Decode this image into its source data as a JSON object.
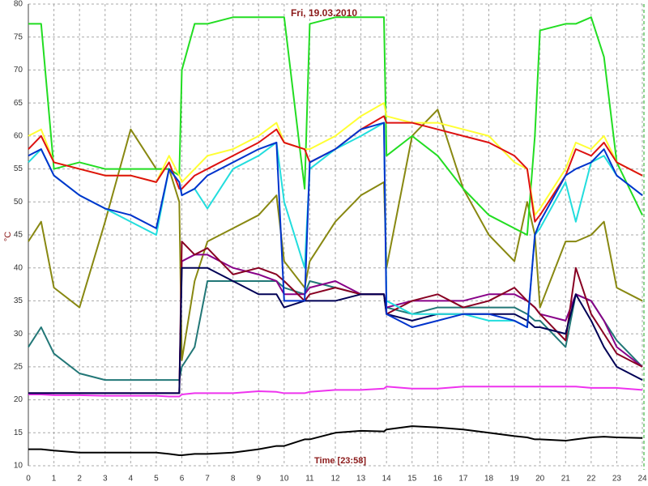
{
  "chart_data": {
    "type": "line",
    "title": "Fri, 19.03.2010",
    "xlabel": "Time [23:58]",
    "ylabel": "°C",
    "x": [
      0,
      0.5,
      1,
      2,
      3,
      4,
      5,
      5.5,
      5.9,
      6,
      6.5,
      7,
      8,
      9,
      9.7,
      10,
      10.8,
      11,
      12,
      13,
      13.9,
      14,
      15,
      16,
      17,
      18,
      19,
      19.5,
      19.8,
      20,
      21,
      21.4,
      22,
      22.5,
      23,
      24
    ],
    "xlim": [
      0,
      24
    ],
    "xticks": [
      0,
      1,
      2,
      3,
      4,
      5,
      6,
      7,
      8,
      9,
      10,
      11,
      12,
      13,
      14,
      15,
      16,
      17,
      18,
      19,
      20,
      21,
      22,
      23,
      24
    ],
    "ylim": [
      10,
      80
    ],
    "yticks": [
      10,
      15,
      20,
      25,
      30,
      35,
      40,
      45,
      50,
      55,
      60,
      65,
      70,
      75,
      80
    ],
    "grid": true,
    "series": [
      {
        "color": "#000000",
        "values": [
          12.5,
          12.5,
          12.3,
          12,
          12,
          12,
          12,
          11.8,
          11.6,
          11.6,
          11.8,
          11.8,
          12,
          12.5,
          13,
          13,
          14,
          14,
          15,
          15.3,
          15.2,
          15.5,
          16,
          15.8,
          15.5,
          15,
          14.5,
          14.3,
          14,
          14,
          13.8,
          14,
          14.3,
          14.4,
          14.3,
          14.2
        ]
      },
      {
        "color": "#ee33ee",
        "values": [
          20.8,
          20.8,
          20.7,
          20.7,
          20.6,
          20.6,
          20.6,
          20.5,
          20.5,
          20.8,
          21,
          21,
          21,
          21.3,
          21.2,
          21,
          21,
          21.2,
          21.5,
          21.5,
          21.7,
          22,
          21.7,
          21.7,
          22,
          22,
          22,
          22,
          22,
          22,
          22,
          22,
          21.8,
          21.8,
          21.8,
          21.5
        ]
      },
      {
        "color": "#888811",
        "values": [
          44,
          47,
          37,
          34,
          47,
          61,
          55,
          55,
          50,
          26,
          38,
          44,
          46,
          48,
          51,
          41,
          37,
          41,
          47,
          51,
          53,
          40,
          60,
          64,
          52,
          45,
          41,
          50,
          45,
          34,
          44,
          44,
          45,
          47,
          37,
          35
        ]
      },
      {
        "color": "#227777",
        "values": [
          28,
          31,
          27,
          24,
          23,
          23,
          23,
          23,
          23,
          25,
          28,
          38,
          38,
          38,
          38,
          37,
          36,
          38,
          37,
          36,
          36,
          34,
          33,
          34,
          34,
          34,
          34,
          33,
          32,
          32,
          28,
          36,
          35,
          32,
          29,
          25
        ]
      },
      {
        "color": "#880088",
        "values": [
          21,
          21,
          21,
          21,
          21,
          21,
          21,
          21,
          21,
          41,
          42,
          42,
          40,
          39,
          38,
          36,
          36,
          37,
          38,
          36,
          36,
          34,
          35,
          35,
          35,
          36,
          36,
          35,
          34,
          33,
          32,
          36,
          35,
          32,
          28,
          25
        ]
      },
      {
        "color": "#880022",
        "values": [
          21,
          21,
          21,
          21,
          21,
          21,
          21,
          21,
          21,
          44,
          42,
          43,
          39,
          40,
          39,
          38,
          35,
          36,
          37,
          36,
          36,
          33,
          35,
          36,
          34,
          35,
          37,
          35,
          34,
          33,
          29,
          40,
          33,
          30,
          27,
          25
        ]
      },
      {
        "color": "#000055",
        "values": [
          21,
          21,
          21,
          21,
          21,
          21,
          21,
          21,
          21,
          40,
          40,
          40,
          38,
          36,
          36,
          34,
          35,
          35,
          35,
          36,
          36,
          33,
          32,
          33,
          33,
          33,
          33,
          32,
          31,
          31,
          30,
          36,
          32,
          28,
          25,
          23
        ]
      },
      {
        "color": "#22dd22",
        "values": [
          77,
          77,
          55,
          56,
          55,
          55,
          55,
          55,
          54,
          70,
          77,
          77,
          78,
          78,
          78,
          78,
          52,
          77,
          78,
          78,
          78,
          57,
          60,
          57,
          52,
          48,
          46,
          45,
          60,
          76,
          77,
          77,
          78,
          72,
          56,
          48
        ]
      },
      {
        "color": "#ffff33",
        "values": [
          60,
          61,
          56,
          55,
          54,
          54,
          53,
          57,
          54,
          53,
          55,
          57,
          58,
          60,
          62,
          59,
          58,
          58,
          60,
          63,
          65,
          63,
          62,
          62,
          61,
          60,
          56,
          55,
          48,
          49,
          55,
          59,
          58,
          60,
          56,
          54
        ]
      },
      {
        "color": "#dd1111",
        "values": [
          58,
          60,
          56,
          55,
          54,
          54,
          53,
          56,
          52,
          52,
          54,
          55,
          57,
          59,
          61,
          59,
          58,
          56,
          58,
          61,
          63,
          62,
          62,
          61,
          60,
          59,
          57,
          55,
          47,
          48,
          54,
          58,
          57,
          59,
          56,
          54
        ]
      },
      {
        "color": "#22dddd",
        "values": [
          56,
          58,
          54,
          51,
          49,
          47,
          45,
          55,
          53,
          51,
          52,
          49,
          55,
          57,
          59,
          50,
          40,
          55,
          58,
          60,
          62,
          35,
          33,
          33,
          33,
          32,
          32,
          31,
          45,
          46,
          53,
          47,
          56,
          57,
          54,
          51
        ]
      },
      {
        "color": "#0033cc",
        "values": [
          57,
          58,
          54,
          51,
          49,
          48,
          46,
          55,
          53,
          51,
          52,
          54,
          56,
          58,
          59,
          35,
          35,
          56,
          58,
          61,
          62,
          33,
          31,
          32,
          33,
          33,
          32,
          31,
          45,
          47,
          54,
          55,
          56,
          58,
          54,
          51
        ]
      }
    ]
  }
}
